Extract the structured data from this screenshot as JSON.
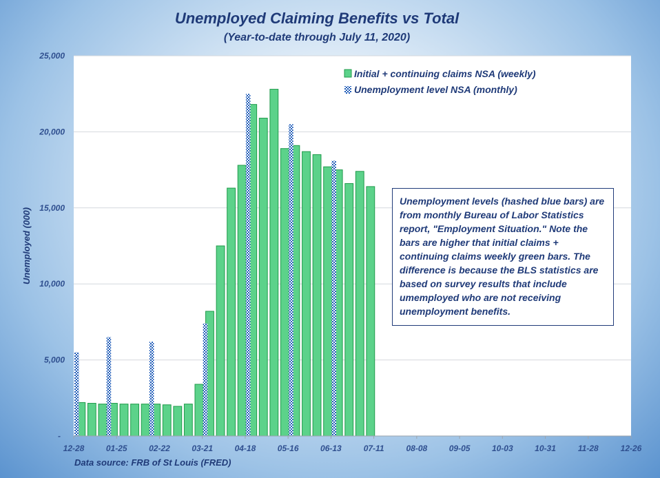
{
  "chart_data": {
    "type": "bar",
    "title": "Unemployed Claiming Benefits vs Total",
    "subtitle": "(Year-to-date through July 11, 2020)",
    "ylabel": "Unemployed (000)",
    "source": "Data source: FRB of St Louis (FRED)",
    "ylim": [
      0,
      25000
    ],
    "y_ticks": [
      {
        "value": 0,
        "label": "-"
      },
      {
        "value": 5000,
        "label": "5,000"
      },
      {
        "value": 10000,
        "label": "10,000"
      },
      {
        "value": 15000,
        "label": "15,000"
      },
      {
        "value": 20000,
        "label": "20,000"
      },
      {
        "value": 25000,
        "label": "25,000"
      }
    ],
    "x_ticks": [
      "12-28",
      "01-25",
      "02-22",
      "03-21",
      "04-18",
      "05-16",
      "06-13",
      "07-11",
      "08-08",
      "09-05",
      "10-03",
      "10-31",
      "11-28",
      "12-26"
    ],
    "week_slots": 52,
    "legend_position": "top-right",
    "grid": true,
    "series": [
      {
        "name": "Initial + continuing claims NSA (weekly)",
        "style": "solid",
        "color": "#5cd28a",
        "edge": "#1f9a4a",
        "values": [
          2200,
          2150,
          2100,
          2150,
          2100,
          2100,
          2100,
          2100,
          2050,
          1950,
          2100,
          3400,
          8200,
          12500,
          16300,
          17800,
          21800,
          20900,
          22800,
          18900,
          19100,
          18700,
          18500,
          17700,
          17500,
          16600,
          17400,
          16400
        ]
      },
      {
        "name": "Unemployment level NSA (monthly)",
        "style": "hatched",
        "color": "#1e5bb8",
        "points": [
          {
            "week": 0,
            "value": 5500
          },
          {
            "week": 3,
            "value": 6500
          },
          {
            "week": 7,
            "value": 6200
          },
          {
            "week": 12,
            "value": 7400
          },
          {
            "week": 16,
            "value": 22500
          },
          {
            "week": 20,
            "value": 20500
          },
          {
            "week": 24,
            "value": 18100
          }
        ]
      }
    ],
    "annotation": "Unemployment levels (hashed blue bars) are from monthly Bureau of Labor Statistics report, \"Employment Situation.\" Note the bars are higher that initial claims + continuing claims weekly green bars. The difference is because the BLS statistics are based on survey results that include umemployed who are not receiving unemployment benefits."
  }
}
